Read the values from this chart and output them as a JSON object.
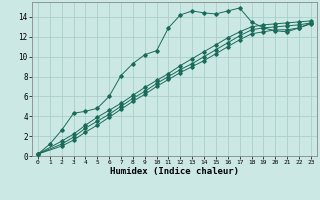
{
  "bg_color": "#cce8e4",
  "grid_color": "#aacfcb",
  "line_color": "#1a6b5a",
  "marker_color": "#1a6b5a",
  "xlabel": "Humidex (Indice chaleur)",
  "xlabel_fontsize": 6.5,
  "xlim": [
    -0.5,
    23.5
  ],
  "ylim": [
    0,
    15.5
  ],
  "xticks": [
    0,
    1,
    2,
    3,
    4,
    5,
    6,
    7,
    8,
    9,
    10,
    11,
    12,
    13,
    14,
    15,
    16,
    17,
    18,
    19,
    20,
    21,
    22,
    23
  ],
  "yticks": [
    0,
    2,
    4,
    6,
    8,
    10,
    12,
    14
  ],
  "line1_x": [
    0,
    1,
    2,
    3,
    4,
    5,
    6,
    7,
    8,
    9,
    10,
    11,
    12,
    13,
    14,
    15,
    16,
    17,
    18,
    19,
    20,
    21,
    22,
    23
  ],
  "line1_y": [
    0.2,
    1.2,
    2.6,
    4.3,
    4.5,
    4.8,
    6.0,
    8.1,
    9.3,
    10.2,
    10.6,
    12.9,
    14.2,
    14.6,
    14.4,
    14.3,
    14.6,
    14.9,
    13.5,
    12.9,
    12.6,
    12.5,
    12.9,
    13.4
  ],
  "line2_x": [
    0,
    2,
    3,
    4,
    5,
    6,
    7,
    8,
    9,
    10,
    11,
    12,
    13,
    14,
    15,
    16,
    17,
    18,
    19,
    20,
    21,
    22,
    23
  ],
  "line2_y": [
    0.2,
    1.5,
    2.2,
    3.1,
    3.9,
    4.6,
    5.3,
    6.1,
    6.9,
    7.6,
    8.3,
    9.1,
    9.8,
    10.5,
    11.2,
    11.9,
    12.5,
    13.0,
    13.2,
    13.3,
    13.4,
    13.5,
    13.6
  ],
  "line3_x": [
    0,
    2,
    3,
    4,
    5,
    6,
    7,
    8,
    9,
    10,
    11,
    12,
    13,
    14,
    15,
    16,
    17,
    18,
    19,
    20,
    21,
    22,
    23
  ],
  "line3_y": [
    0.2,
    1.2,
    1.9,
    2.8,
    3.5,
    4.2,
    5.0,
    5.8,
    6.5,
    7.3,
    8.0,
    8.7,
    9.3,
    10.0,
    10.7,
    11.4,
    12.1,
    12.7,
    12.9,
    13.0,
    13.1,
    13.2,
    13.4
  ],
  "line4_x": [
    0,
    2,
    3,
    4,
    5,
    6,
    7,
    8,
    9,
    10,
    11,
    12,
    13,
    14,
    15,
    16,
    17,
    18,
    19,
    20,
    21,
    22,
    23
  ],
  "line4_y": [
    0.2,
    1.0,
    1.6,
    2.4,
    3.1,
    3.9,
    4.7,
    5.5,
    6.2,
    7.0,
    7.7,
    8.4,
    9.0,
    9.6,
    10.3,
    11.0,
    11.7,
    12.3,
    12.5,
    12.7,
    12.7,
    12.9,
    13.3
  ]
}
